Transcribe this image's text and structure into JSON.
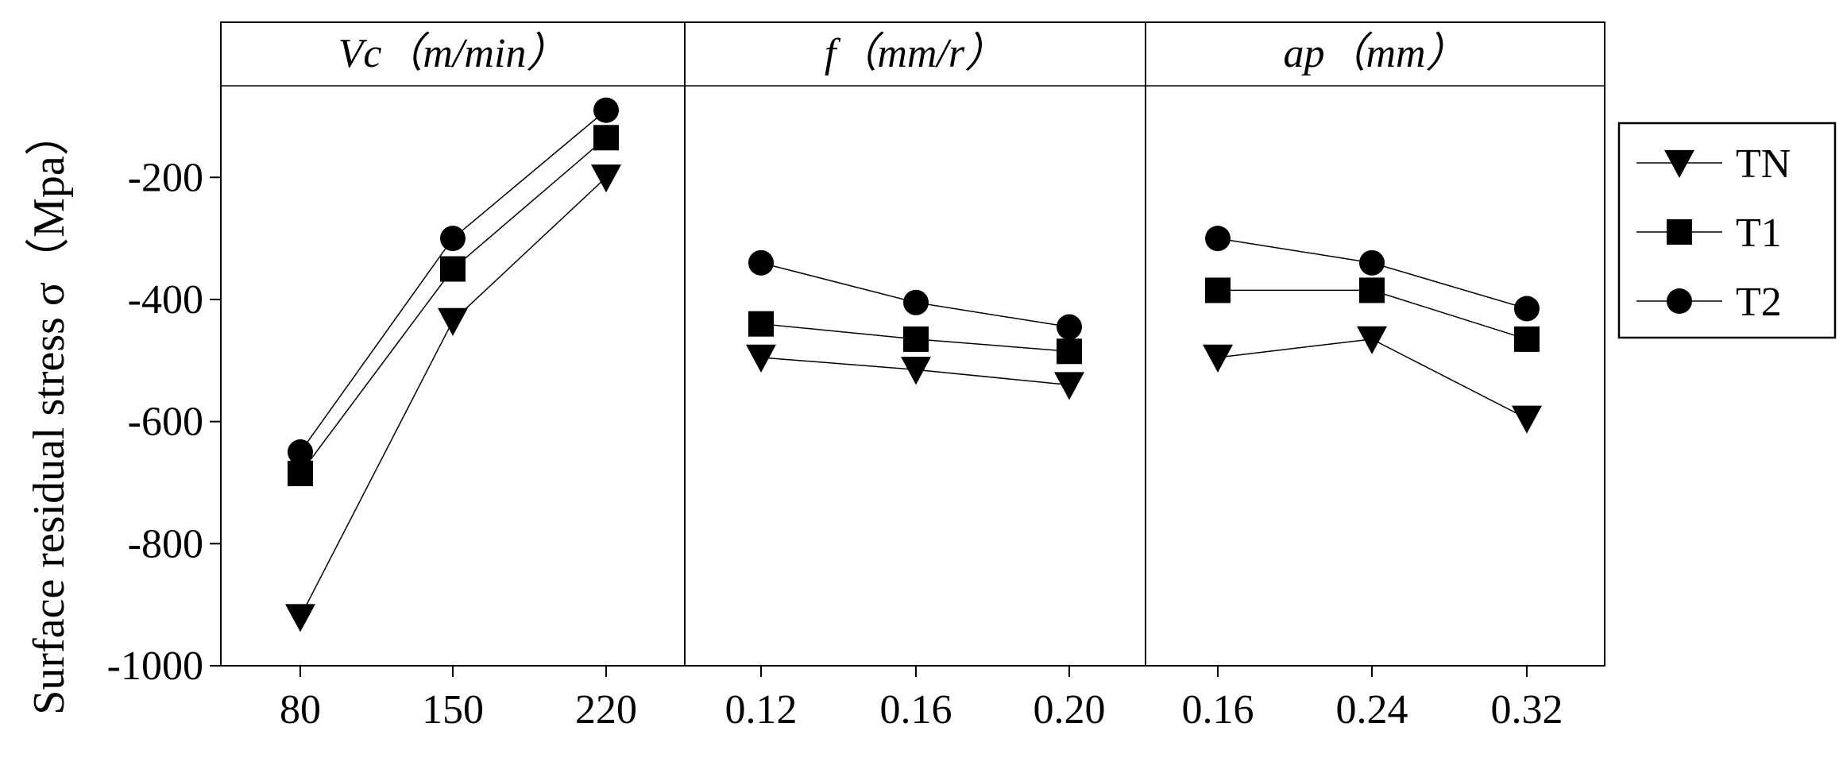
{
  "chart_data": {
    "type": "line",
    "ylabel": "Surface residual stress  σ（Mpa）",
    "ylim": [
      -1000,
      -50
    ],
    "yticks": [
      -1000,
      -800,
      -600,
      -400,
      -200
    ],
    "ytick_labels": [
      "-1000",
      "-800",
      "-600",
      "-400",
      "-200"
    ],
    "legend": {
      "placement": "right",
      "entries": [
        {
          "name": "TN",
          "marker": "triangle-down-icon"
        },
        {
          "name": "T1",
          "marker": "square-icon"
        },
        {
          "name": "T2",
          "marker": "circle-icon"
        }
      ]
    },
    "panels": [
      {
        "title": "Vc（m/min）",
        "categories": [
          "80",
          "150",
          "220"
        ],
        "series": [
          {
            "name": "TN",
            "values": [
              -920,
              -435,
              -200
            ]
          },
          {
            "name": "T1",
            "values": [
              -685,
              -350,
              -135
            ]
          },
          {
            "name": "T2",
            "values": [
              -650,
              -300,
              -90
            ]
          }
        ]
      },
      {
        "title": "f（mm/r）",
        "categories": [
          "0.12",
          "0.16",
          "0.20"
        ],
        "series": [
          {
            "name": "TN",
            "values": [
              -495,
              -515,
              -540
            ]
          },
          {
            "name": "T1",
            "values": [
              -440,
              -465,
              -485
            ]
          },
          {
            "name": "T2",
            "values": [
              -340,
              -405,
              -445
            ]
          }
        ]
      },
      {
        "title": "ap（mm）",
        "categories": [
          "0.16",
          "0.24",
          "0.32"
        ],
        "series": [
          {
            "name": "TN",
            "values": [
              -495,
              -465,
              -595
            ]
          },
          {
            "name": "T1",
            "values": [
              -385,
              -385,
              -465
            ]
          },
          {
            "name": "T2",
            "values": [
              -300,
              -340,
              -415
            ]
          }
        ]
      }
    ]
  }
}
